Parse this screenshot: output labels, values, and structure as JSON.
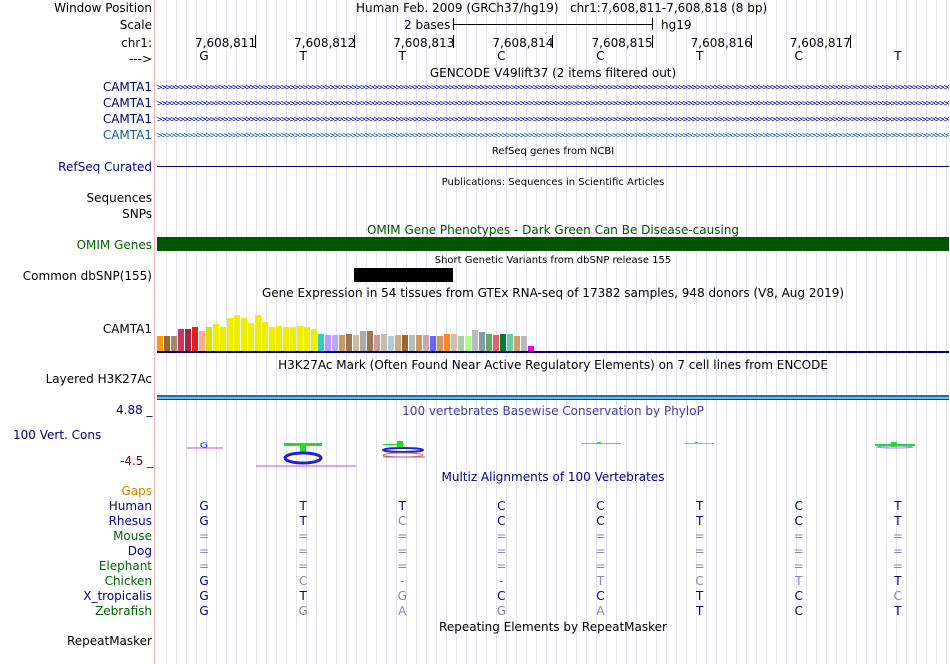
{
  "header": {
    "window_position_label": "Window Position",
    "scale_label": "Scale",
    "chr_label": "chr1:",
    "strand_label": "--->",
    "assembly": "Human Feb. 2009 (GRCh37/hg19)",
    "position": "chr1:7,608,811-7,608,818 (8 bp)",
    "scale_text": "2 bases",
    "scale_db": "hg19",
    "coords": [
      "7,608,811",
      "7,608,812",
      "7,608,813",
      "7,608,814",
      "7,608,815",
      "7,608,816",
      "7,608,817"
    ],
    "bases": [
      "G",
      "T",
      "T",
      "C",
      "C",
      "T",
      "C",
      "T"
    ]
  },
  "tracks": {
    "gencode_title": "GENCODE V49lift37 (2 items filtered out)",
    "camta_labels": [
      "CAMTA1",
      "CAMTA1",
      "CAMTA1",
      "CAMTA1"
    ],
    "refseq_label": "RefSeq Curated",
    "refseq_title": "RefSeq genes from NCBI",
    "pubs_title": "Publications: Sequences in Scientific Articles",
    "sequences_label": "Sequences",
    "snps_label": "SNPs",
    "omim_title": "OMIM Gene Phenotypes - Dark Green Can Be Disease-causing",
    "omim_label": "OMIM Genes",
    "dbsnp_title": "Short Genetic Variants from dbSNP release 155",
    "dbsnp_label": "Common dbSNP(155)",
    "gtex_title": "Gene Expression in 54 tissues from GTEx RNA-seq of 17382 samples, 948 donors (V8, Aug 2019)",
    "gtex_label": "CAMTA1",
    "h3k_title": "H3K27Ac Mark (Often Found Near Active Regulatory Elements) on 7 cell lines from ENCODE",
    "h3k_label": "Layered H3K27Ac",
    "phylop_title": "100 vertebrates Basewise Conservation by PhyloP",
    "phylop_label": "100 Vert. Cons",
    "phylop_max": "4.88 _",
    "phylop_min": "-4.5 _",
    "multiz_title": "Multiz Alignments of 100 Vertebrates",
    "repeat_title": "Repeating Elements by RepeatMasker",
    "repeat_label": "RepeatMasker"
  },
  "alignment": {
    "gaps_label": "Gaps",
    "species": [
      {
        "name": "Human",
        "color": "#000080",
        "bases": [
          "G",
          "T",
          "T",
          "C",
          "C",
          "T",
          "C",
          "T"
        ]
      },
      {
        "name": "Rhesus",
        "color": "#000080",
        "bases": [
          "G",
          "T",
          "C",
          "C",
          "C",
          "T",
          "C",
          "T"
        ]
      },
      {
        "name": "Mouse",
        "color": "#006400",
        "bases": [
          "=",
          "=",
          "=",
          "=",
          "=",
          "=",
          "=",
          "="
        ]
      },
      {
        "name": "Dog",
        "color": "#000080",
        "bases": [
          "=",
          "=",
          "=",
          "=",
          "=",
          "=",
          "=",
          "="
        ]
      },
      {
        "name": "Elephant",
        "color": "#006400",
        "bases": [
          "=",
          "=",
          "=",
          "=",
          "=",
          "=",
          "=",
          "="
        ]
      },
      {
        "name": "Chicken",
        "color": "#006400",
        "bases": [
          "G",
          "C",
          "-",
          "-",
          "T",
          "C",
          "T",
          "T"
        ]
      },
      {
        "name": "X_tropicalis",
        "color": "#000080",
        "bases": [
          "G",
          "T",
          "G",
          "C",
          "C",
          "T",
          "C",
          "C"
        ]
      },
      {
        "name": "Zebrafish",
        "color": "#006400",
        "bases": [
          "G",
          "G",
          "A",
          "G",
          "A",
          "T",
          "C",
          "T"
        ]
      }
    ]
  },
  "gtex_values": [
    0.28,
    0.28,
    0.28,
    0.42,
    0.42,
    0.45,
    0.38,
    0.45,
    0.5,
    0.45,
    0.62,
    0.68,
    0.62,
    0.52,
    0.68,
    0.55,
    0.45,
    0.48,
    0.45,
    0.45,
    0.48,
    0.45,
    0.42,
    0.32,
    0.3,
    0.3,
    0.3,
    0.32,
    0.3,
    0.38,
    0.38,
    0.3,
    0.32,
    0.28,
    0.3,
    0.3,
    0.3,
    0.3,
    0.3,
    0.28,
    0.28,
    0.32,
    0.32,
    0.28,
    0.28,
    0.4,
    0.36,
    0.32,
    0.3,
    0.32,
    0.32,
    0.28,
    0.28,
    0.1
  ],
  "gtex_colors": [
    "#ff9900",
    "#996633",
    "#aa8866",
    "#cc3366",
    "#aa2244",
    "#dd2222",
    "#ffaa88",
    "#dddd00",
    "#eeee00",
    "#eeee00",
    "#eeee00",
    "#eeee00",
    "#eeee00",
    "#eeee00",
    "#eeee00",
    "#eeee00",
    "#eeee00",
    "#eeee00",
    "#eeee00",
    "#eeee00",
    "#eeee00",
    "#eeee00",
    "#eeee00",
    "#33cccc",
    "#bb99ff",
    "#bbaaff",
    "#cc9966",
    "#997755",
    "#ccbb99",
    "#aaaaaa",
    "#997755",
    "#cc9999",
    "#ccbbaa",
    "#aaccdd",
    "#ccaa88",
    "#996633",
    "#bbbbbb",
    "#cc9966",
    "#ccaaaa",
    "#6666ff",
    "#cc9966",
    "#ff8822",
    "#ddbbaa",
    "#aaccaa",
    "#aaff88",
    "#bbbbbb",
    "#8899aa",
    "#66aa66",
    "#dd6666",
    "#117733",
    "#66ccaa",
    "#dd9966",
    "#bbbbbb",
    "#ee00ee"
  ],
  "colors": {
    "navy": "#000080",
    "omim_green": "#005500",
    "label_green": "#006400",
    "gaps_orange": "#cc8800",
    "phylop_title": "#4040a0",
    "phylop_max_color": "#000080",
    "phylop_min_color": "#800000"
  }
}
